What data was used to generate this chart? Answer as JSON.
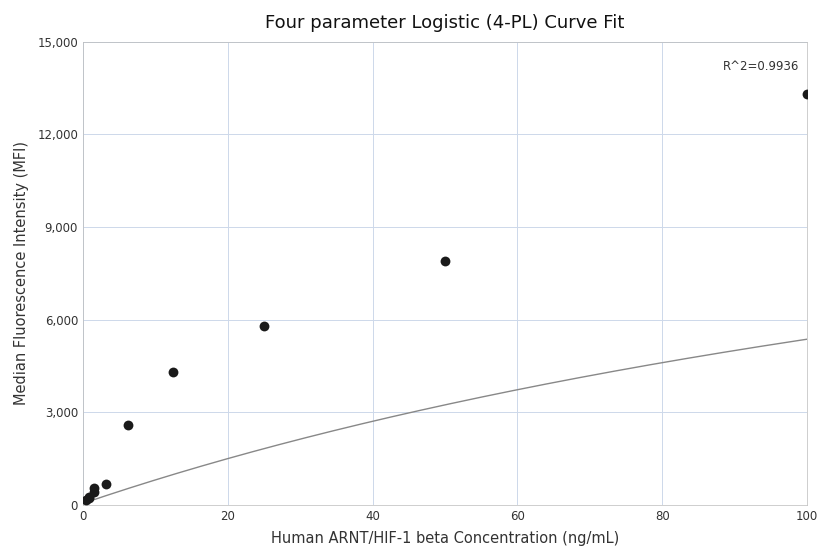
{
  "title": "Four parameter Logistic (4-PL) Curve Fit",
  "xlabel": "Human ARNT/HIF-1 beta Concentration (ng/mL)",
  "ylabel": "Median Fluorescence Intensity (MFI)",
  "scatter_x": [
    0.39,
    0.78,
    0.78,
    1.56,
    1.56,
    3.13,
    6.25,
    12.5,
    25.0,
    50.0,
    100.0
  ],
  "scatter_y": [
    160,
    220,
    270,
    420,
    550,
    680,
    2600,
    4300,
    5800,
    7900,
    13300
  ],
  "r2_text": "R^2=0.9936",
  "r2_x": 99,
  "r2_y": 14200,
  "xlim": [
    0,
    100
  ],
  "ylim": [
    0,
    15000
  ],
  "yticks": [
    0,
    3000,
    6000,
    9000,
    12000,
    15000
  ],
  "xticks": [
    0,
    20,
    40,
    60,
    80,
    100
  ],
  "background_color": "#ffffff",
  "grid_color": "#cdd8ea",
  "curve_color": "#888888",
  "scatter_color": "#1a1a1a",
  "curve_x_start": 0.05,
  "curve_x_end": 100,
  "title_fontsize": 13,
  "label_fontsize": 10.5
}
